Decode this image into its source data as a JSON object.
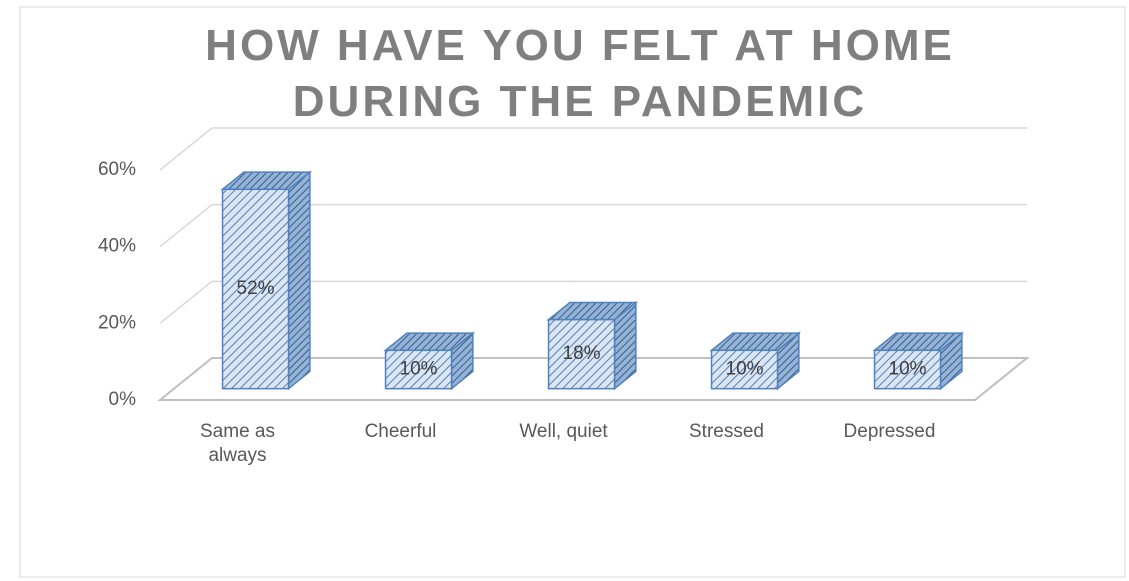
{
  "chart_data": {
    "type": "bar3d",
    "title": "HOW HAVE YOU FELT AT HOME DURING THE PANDEMIC",
    "categories": [
      "Same as always",
      "Cheerful",
      "Well, quiet",
      "Stressed",
      "Depressed"
    ],
    "values": [
      52,
      10,
      18,
      10,
      10
    ],
    "value_labels": [
      "52%",
      "10%",
      "18%",
      "10%",
      "10%"
    ],
    "color": "#4f81bd",
    "ylim": [
      0,
      60
    ],
    "yticks": [
      {
        "value": 0,
        "label": "0%"
      },
      {
        "value": 20,
        "label": "20%"
      },
      {
        "value": 40,
        "label": "40%"
      },
      {
        "value": 60,
        "label": "60%"
      }
    ],
    "grid": true
  }
}
